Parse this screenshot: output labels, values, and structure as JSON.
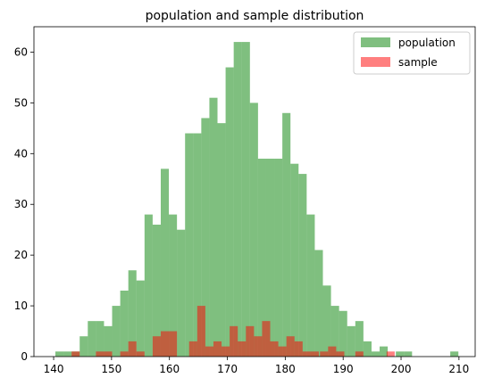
{
  "chart_data": {
    "type": "histogram",
    "title": "population and sample distribution",
    "xlabel": "",
    "ylabel": "",
    "xlim": [
      136.6,
      212.8
    ],
    "ylim": [
      0,
      65
    ],
    "xticks": [
      140,
      150,
      160,
      170,
      180,
      190,
      200,
      210
    ],
    "yticks": [
      0,
      10,
      20,
      30,
      40,
      50,
      60
    ],
    "legend_position": "top-right",
    "series": [
      {
        "name": "population",
        "color": "#008000",
        "alpha": 0.5,
        "bins": [
          [
            140.3,
            141.7,
            1
          ],
          [
            141.7,
            143.1,
            1
          ],
          [
            143.1,
            144.5,
            1
          ],
          [
            144.5,
            145.9,
            4
          ],
          [
            145.9,
            147.3,
            7
          ],
          [
            147.3,
            148.7,
            7
          ],
          [
            148.7,
            150.1,
            6
          ],
          [
            150.1,
            151.5,
            10
          ],
          [
            151.5,
            152.9,
            13
          ],
          [
            152.9,
            154.3,
            17
          ],
          [
            154.3,
            155.7,
            15
          ],
          [
            155.7,
            157.1,
            28
          ],
          [
            157.1,
            158.5,
            26
          ],
          [
            158.5,
            159.9,
            37
          ],
          [
            159.9,
            161.3,
            28
          ],
          [
            161.3,
            162.7,
            25
          ],
          [
            162.7,
            164.1,
            44
          ],
          [
            164.1,
            165.5,
            44
          ],
          [
            165.5,
            166.9,
            47
          ],
          [
            166.9,
            168.3,
            51
          ],
          [
            168.3,
            169.7,
            46
          ],
          [
            169.7,
            171.1,
            57
          ],
          [
            171.1,
            172.5,
            62
          ],
          [
            172.5,
            173.9,
            62
          ],
          [
            173.9,
            175.3,
            50
          ],
          [
            175.3,
            176.7,
            39
          ],
          [
            176.7,
            178.1,
            39
          ],
          [
            178.1,
            179.5,
            39
          ],
          [
            179.5,
            180.9,
            48
          ],
          [
            180.9,
            182.3,
            38
          ],
          [
            182.3,
            183.7,
            36
          ],
          [
            183.7,
            185.1,
            28
          ],
          [
            185.1,
            186.5,
            21
          ],
          [
            186.5,
            187.9,
            14
          ],
          [
            187.9,
            189.3,
            10
          ],
          [
            189.3,
            190.7,
            9
          ],
          [
            190.7,
            192.1,
            6
          ],
          [
            192.1,
            193.5,
            7
          ],
          [
            193.5,
            194.9,
            3
          ],
          [
            194.9,
            196.3,
            1
          ],
          [
            196.3,
            197.7,
            2
          ],
          [
            197.7,
            199.1,
            0
          ],
          [
            199.1,
            200.5,
            1
          ],
          [
            200.5,
            201.9,
            1
          ],
          [
            208.5,
            209.9,
            1
          ]
        ]
      },
      {
        "name": "sample",
        "color": "#ff0000",
        "alpha": 0.5,
        "bins": [
          [
            143.1,
            144.5,
            1
          ],
          [
            147.3,
            148.7,
            1
          ],
          [
            148.7,
            150.1,
            1
          ],
          [
            151.5,
            152.9,
            1
          ],
          [
            152.9,
            154.3,
            3
          ],
          [
            154.3,
            155.7,
            1
          ],
          [
            157.1,
            158.5,
            4
          ],
          [
            158.5,
            159.9,
            5
          ],
          [
            159.9,
            161.3,
            5
          ],
          [
            163.4,
            164.8,
            3
          ],
          [
            164.8,
            166.2,
            10
          ],
          [
            166.2,
            167.6,
            2
          ],
          [
            167.6,
            169.0,
            3
          ],
          [
            169.0,
            170.4,
            2
          ],
          [
            170.4,
            171.8,
            6
          ],
          [
            171.8,
            173.2,
            3
          ],
          [
            173.2,
            174.6,
            6
          ],
          [
            174.6,
            176.0,
            4
          ],
          [
            176.0,
            177.4,
            7
          ],
          [
            177.4,
            178.8,
            3
          ],
          [
            178.8,
            180.2,
            2
          ],
          [
            180.2,
            181.6,
            4
          ],
          [
            181.6,
            183.0,
            3
          ],
          [
            183.0,
            184.4,
            1
          ],
          [
            184.4,
            185.8,
            1
          ],
          [
            186.0,
            187.4,
            1
          ],
          [
            187.4,
            188.8,
            2
          ],
          [
            188.8,
            190.2,
            1
          ],
          [
            192.1,
            193.5,
            1
          ],
          [
            197.5,
            198.9,
            1
          ]
        ]
      }
    ]
  }
}
